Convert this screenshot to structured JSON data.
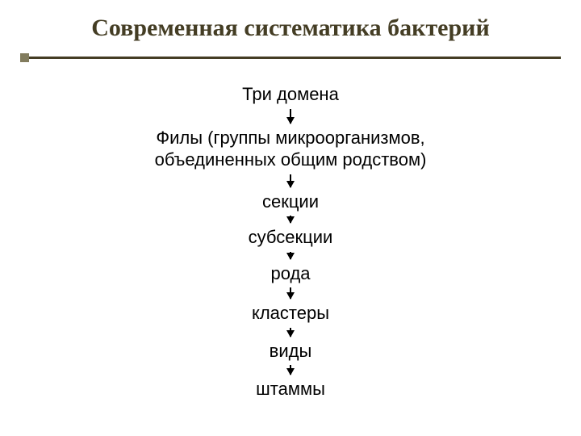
{
  "title": "Современная систематика бактерий",
  "hierarchy": {
    "level1": "Три домена",
    "level2_line1": "Филы (группы микроорганизмов,",
    "level2_line2": "объединенных общим родством)",
    "level3": "секции",
    "level4": "субсекции",
    "level5": "рода",
    "level6": "кластеры",
    "level7": "виды",
    "level8": "штаммы"
  },
  "styling": {
    "title_color": "#443d24",
    "divider_color": "#443d24",
    "divider_bullet_color": "#827c5e",
    "text_color": "#000000",
    "background_color": "#ffffff",
    "title_fontsize": 30,
    "level_fontsize": 22,
    "arrow_color": "#000000"
  }
}
